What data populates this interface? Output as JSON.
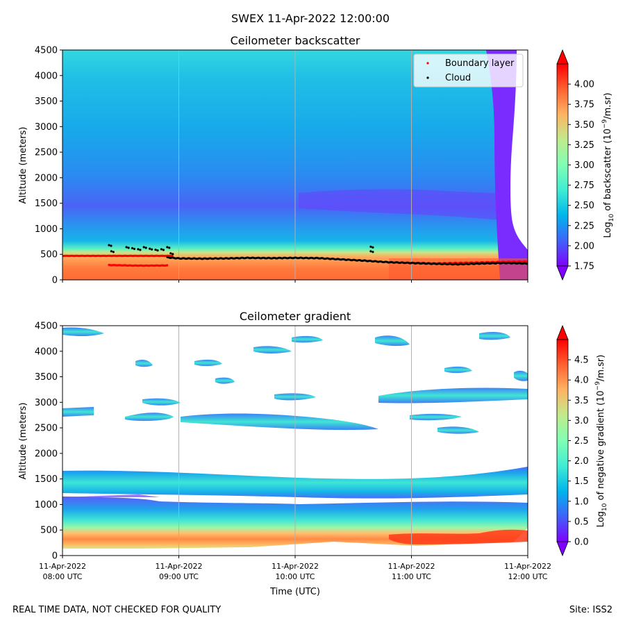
{
  "figure": {
    "suptitle": "SWEX 11-Apr-2022 12:00:00",
    "footer_left": "REAL TIME DATA, NOT CHECKED FOR QUALITY",
    "footer_right": "Site: ISS2"
  },
  "colors": {
    "boundary_layer": "#ff0000",
    "cloud": "#000000",
    "grid": "#b0b0b0",
    "colormap": [
      "#8000ff",
      "#4062fa",
      "#00b5eb",
      "#40ecd4",
      "#80ffb4",
      "#c0eb8d",
      "#ffb462",
      "#ff6232",
      "#ff0000"
    ]
  },
  "x_axis": {
    "label": "Time (UTC)",
    "ticks": [
      {
        "date": "11-Apr-2022",
        "time": "08:00 UTC"
      },
      {
        "date": "11-Apr-2022",
        "time": "09:00 UTC"
      },
      {
        "date": "11-Apr-2022",
        "time": "10:00 UTC"
      },
      {
        "date": "11-Apr-2022",
        "time": "11:00 UTC"
      },
      {
        "date": "11-Apr-2022",
        "time": "12:00 UTC"
      }
    ]
  },
  "chart_data": [
    {
      "type": "heatmap",
      "title": "Ceilometer backscatter",
      "xlabel": "",
      "ylabel": "Altitude (meters)",
      "xlim_hours": [
        8,
        12
      ],
      "ylim": [
        0,
        4500
      ],
      "yticks": [
        "0",
        "500",
        "1000",
        "1500",
        "2000",
        "2500",
        "3000",
        "3500",
        "4000",
        "4500"
      ],
      "colorbar": {
        "label": "Log10 of backscatter (10^-9/m.sr)",
        "range": [
          1.75,
          4.25
        ],
        "ticks": [
          "1.75",
          "2.00",
          "2.25",
          "2.50",
          "2.75",
          "3.00",
          "3.25",
          "3.50",
          "3.75",
          "4.00"
        ]
      },
      "legend": {
        "position": "top-right",
        "entries": [
          {
            "label": "Boundary layer",
            "color": "boundary_layer"
          },
          {
            "label": "Cloud",
            "color": "cloud"
          }
        ]
      },
      "boundary_layer": {
        "upper": [
          [
            8.0,
            470
          ],
          [
            8.25,
            470
          ],
          [
            8.5,
            470
          ],
          [
            8.75,
            470
          ],
          [
            8.95,
            470
          ]
        ],
        "lower": [
          [
            8.4,
            290
          ],
          [
            8.5,
            285
          ],
          [
            8.6,
            280
          ],
          [
            8.7,
            278
          ],
          [
            8.8,
            280
          ],
          [
            8.9,
            282
          ]
        ],
        "late": [
          [
            11.0,
            330
          ],
          [
            11.2,
            320
          ],
          [
            11.4,
            330
          ],
          [
            11.6,
            340
          ],
          [
            11.8,
            350
          ],
          [
            12.0,
            360
          ]
        ]
      },
      "cloud": {
        "main": [
          [
            8.9,
            440
          ],
          [
            9.0,
            420
          ],
          [
            9.2,
            415
          ],
          [
            9.4,
            420
          ],
          [
            9.6,
            430
          ],
          [
            9.8,
            425
          ],
          [
            10.0,
            430
          ],
          [
            10.2,
            425
          ],
          [
            10.4,
            400
          ],
          [
            10.6,
            375
          ],
          [
            10.8,
            345
          ],
          [
            11.0,
            330
          ],
          [
            11.2,
            315
          ],
          [
            11.4,
            305
          ],
          [
            11.6,
            320
          ],
          [
            11.8,
            330
          ],
          [
            12.0,
            320
          ]
        ],
        "early": [
          [
            8.4,
            680
          ],
          [
            8.42,
            560
          ],
          [
            8.55,
            640
          ],
          [
            8.6,
            620
          ],
          [
            8.65,
            600
          ],
          [
            8.7,
            640
          ],
          [
            8.75,
            610
          ],
          [
            8.8,
            590
          ],
          [
            8.85,
            600
          ],
          [
            8.9,
            640
          ],
          [
            8.93,
            520
          ],
          [
            10.65,
            650
          ],
          [
            10.65,
            560
          ]
        ]
      }
    },
    {
      "type": "heatmap",
      "title": "Ceilometer gradient",
      "xlabel": "Time (UTC)",
      "ylabel": "Altitude (meters)",
      "xlim_hours": [
        8,
        12
      ],
      "ylim": [
        0,
        4500
      ],
      "yticks": [
        "0",
        "500",
        "1000",
        "1500",
        "2000",
        "2500",
        "3000",
        "3500",
        "4000",
        "4500"
      ],
      "colorbar": {
        "label": "Log10 of negative gradient (10^-9/m.sr)",
        "range": [
          0,
          5
        ],
        "ticks": [
          "0.0",
          "0.5",
          "1.0",
          "1.5",
          "2.0",
          "2.5",
          "3.0",
          "3.5",
          "4.0",
          "4.5"
        ]
      }
    }
  ]
}
